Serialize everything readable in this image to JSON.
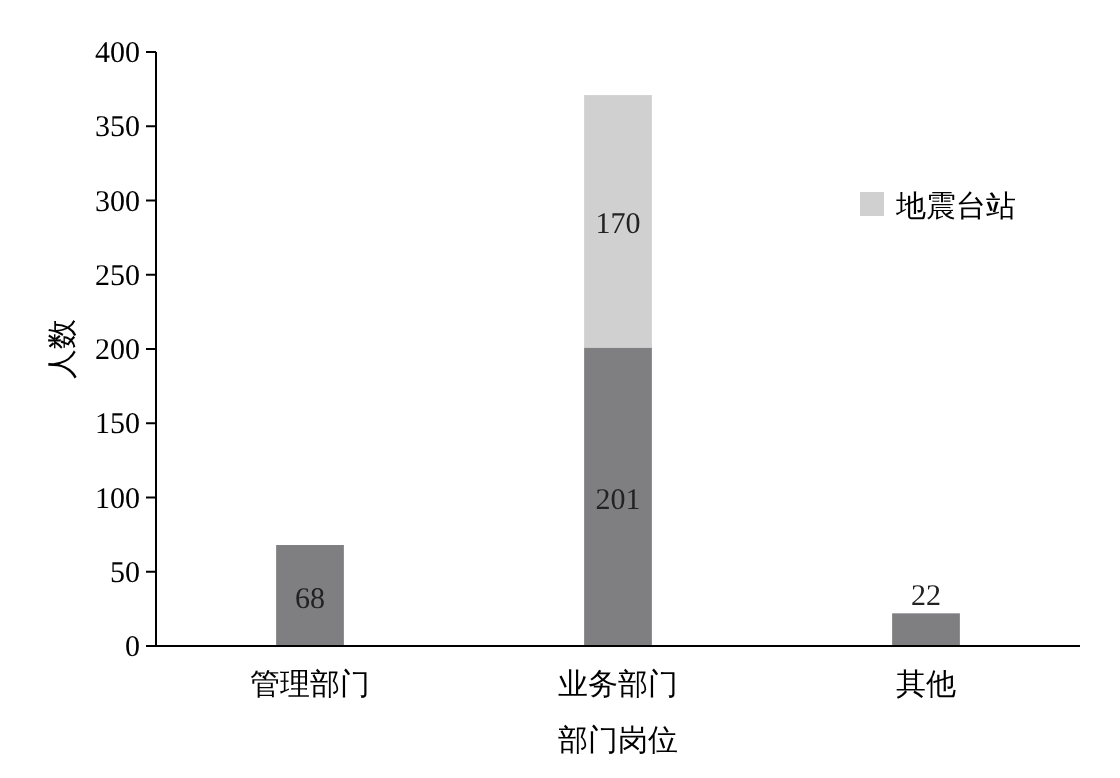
{
  "chart_data": {
    "type": "bar",
    "stacked": true,
    "xlabel": "部门岗位",
    "ylabel": "人数",
    "categories": [
      "管理部门",
      "业务部门",
      "其他"
    ],
    "series": [
      {
        "color": "#7f7f81",
        "values": [
          68,
          201,
          22
        ]
      },
      {
        "name": "地震台站",
        "color": "#d0d0d0",
        "values": [
          null,
          170,
          null
        ]
      }
    ],
    "ylim": [
      0,
      400
    ],
    "yticks": [
      0,
      50,
      100,
      150,
      200,
      250,
      300,
      350,
      400
    ],
    "grid": false,
    "legend": "top right",
    "data_labels": true
  }
}
